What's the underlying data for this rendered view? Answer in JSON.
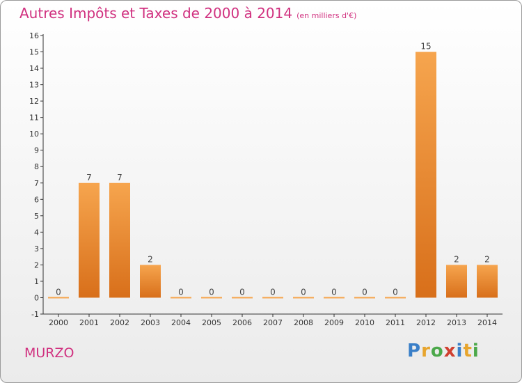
{
  "title": "Autres Impôts et Taxes de 2000 à 2014",
  "subtitle": "(en milliers d'€)",
  "commune": "MURZO",
  "logo_text": "Proxiti",
  "colors": {
    "title": "#d0307f",
    "bar_light": "#f6a54e",
    "bar_dark": "#d86f1a"
  },
  "chart_data": {
    "type": "bar",
    "title": "Autres Impôts et Taxes de 2000 à 2014",
    "subtitle": "(en milliers d'€)",
    "xlabel": "",
    "ylabel": "",
    "ylim": [
      -1,
      16
    ],
    "yticks": [
      -1,
      0,
      1,
      2,
      3,
      4,
      5,
      6,
      7,
      8,
      9,
      10,
      11,
      12,
      13,
      14,
      15,
      16
    ],
    "categories": [
      "2000",
      "2001",
      "2002",
      "2003",
      "2004",
      "2005",
      "2006",
      "2007",
      "2008",
      "2009",
      "2010",
      "2011",
      "2012",
      "2013",
      "2014"
    ],
    "values": [
      0,
      7,
      7,
      2,
      0,
      0,
      0,
      0,
      0,
      0,
      0,
      0,
      15,
      2,
      2
    ],
    "value_labels": [
      "0",
      "7",
      "7",
      "2",
      "0",
      "0",
      "0",
      "0",
      "0",
      "0",
      "0",
      "0",
      "15",
      "2",
      "2"
    ],
    "grid": false,
    "legend": "none"
  }
}
